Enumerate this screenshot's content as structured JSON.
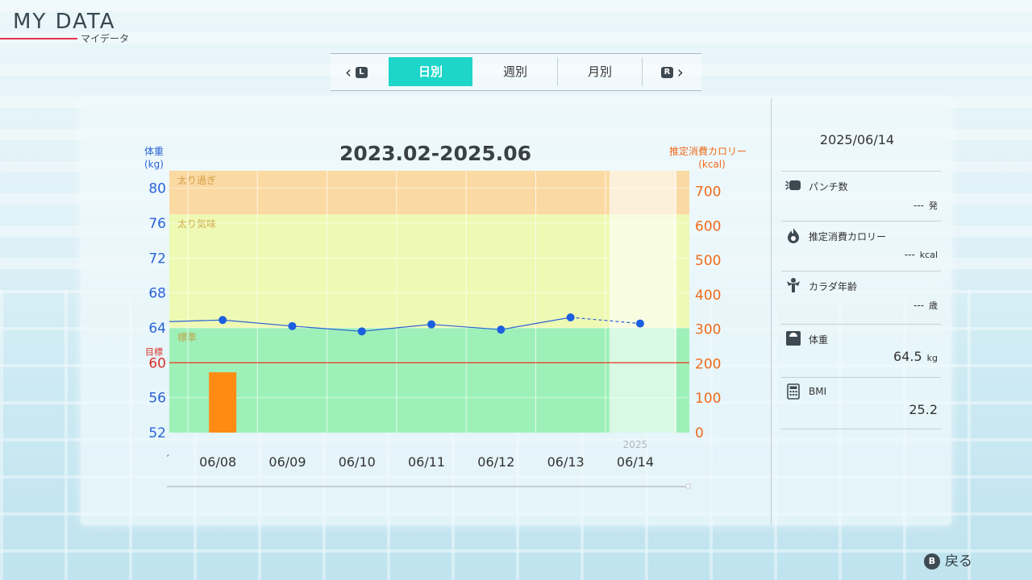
{
  "header": {
    "title": "MY DATA",
    "subtitle": "マイデータ"
  },
  "tabs": {
    "prev_key": "L",
    "next_key": "R",
    "items": [
      {
        "label": "日別",
        "active": true
      },
      {
        "label": "週別",
        "active": false
      },
      {
        "label": "月別",
        "active": false
      }
    ]
  },
  "chart": {
    "title": "2023.02-2025.06",
    "left_axis_title": "体重",
    "left_axis_unit": "(kg)",
    "right_axis_title": "推定消費カロリー",
    "right_axis_unit": "(kcal)",
    "target_label": "目標",
    "year_label": "2025",
    "first_tick_mark": "ˊ"
  },
  "chart_data": {
    "type": "line",
    "title": "2023.02-2025.06",
    "categories": [
      "06/08",
      "06/09",
      "06/10",
      "06/11",
      "06/12",
      "06/13",
      "06/14"
    ],
    "y_left": {
      "label": "体重 (kg)",
      "ticks": [
        52,
        56,
        60,
        64,
        68,
        72,
        76,
        80
      ],
      "range": [
        52,
        82
      ]
    },
    "y_right": {
      "label": "推定消費カロリー (kcal)",
      "ticks": [
        0,
        100,
        200,
        300,
        400,
        500,
        600,
        700
      ],
      "range": [
        0,
        760
      ]
    },
    "series": [
      {
        "type": "line",
        "axis": "left",
        "values": [
          64.9,
          64.2,
          63.6,
          64.4,
          63.8,
          65.2,
          64.5
        ],
        "dashed_last_segment": true
      },
      {
        "type": "bar",
        "axis": "right",
        "values": [
          175,
          null,
          null,
          null,
          null,
          null,
          null
        ]
      }
    ],
    "zones": [
      {
        "name": "太り過ぎ",
        "from": 77,
        "to": 82,
        "color": "#fbd9a3"
      },
      {
        "name": "太り気味",
        "from": 64,
        "to": 77,
        "color": "#eef9b4"
      },
      {
        "name": "標準",
        "from": 52,
        "to": 64,
        "color": "#9ef0b9"
      }
    ],
    "target_line": {
      "label": "目標",
      "value": 60,
      "color": "#e6462e"
    },
    "selected_category": "06/14"
  },
  "info": {
    "date": "2025/06/14",
    "rows": [
      {
        "label": "パンチ数",
        "value": "---",
        "unit": "発",
        "icon": "punch-icon"
      },
      {
        "label": "推定消費カロリー",
        "value": "---",
        "unit": "kcal",
        "icon": "flame-icon"
      },
      {
        "label": "カラダ年齢",
        "value": "---",
        "unit": "歳",
        "icon": "muscle-icon"
      },
      {
        "label": "体重",
        "value": "64.5",
        "unit": "kg",
        "icon": "scale-icon"
      },
      {
        "label": "BMI",
        "value": "25.2",
        "unit": "",
        "icon": "calculator-icon"
      }
    ]
  },
  "footer": {
    "back_key": "B",
    "back_label": "戻る"
  },
  "colors": {
    "accent": "#1dd6c9",
    "weight_blue": "#2a63d6",
    "kcal_orange": "#f06a1a",
    "target_red": "#e6462e"
  }
}
